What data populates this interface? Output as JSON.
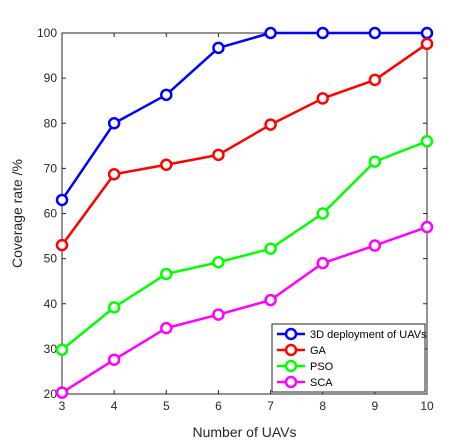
{
  "chart_data": {
    "type": "line",
    "title": "",
    "xlabel": "Number of UAVs",
    "ylabel": "Coverage rate /%",
    "x": [
      3,
      4,
      5,
      6,
      7,
      8,
      9,
      10
    ],
    "xlim": [
      3,
      10
    ],
    "ylim": [
      20,
      100
    ],
    "xticks": [
      "3",
      "4",
      "5",
      "6",
      "7",
      "8",
      "9",
      "10"
    ],
    "yticks": [
      "20",
      "30",
      "40",
      "50",
      "60",
      "70",
      "80",
      "90",
      "100"
    ],
    "grid": false,
    "legend_position": "bottom-right",
    "series": [
      {
        "name": "3D deployment of UAVs",
        "color": "#0000ff",
        "values": [
          63,
          80,
          86.3,
          96.7,
          100,
          100,
          100,
          100
        ]
      },
      {
        "name": "GA",
        "color": "#ff0000",
        "values": [
          53,
          68.7,
          70.8,
          73,
          79.7,
          85.5,
          89.6,
          97.6
        ]
      },
      {
        "name": "PSO",
        "color": "#00ff00",
        "values": [
          29.8,
          39.2,
          46.6,
          49.2,
          52.2,
          60,
          71.5,
          76
        ]
      },
      {
        "name": "SCA",
        "color": "#ff00ff",
        "values": [
          20.3,
          27.6,
          34.6,
          37.6,
          40.8,
          49,
          52.9,
          57
        ]
      }
    ]
  }
}
